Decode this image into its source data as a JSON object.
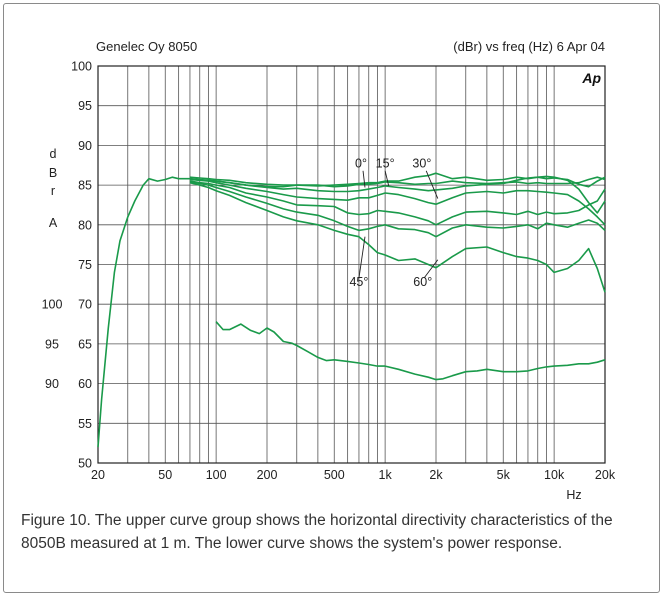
{
  "chart_data": {
    "type": "line",
    "header_left": "Genelec Oy 8050",
    "header_right": "(dBr) vs freq (Hz) 6 Apr 04",
    "logo": "Ap",
    "ylabel_letters": [
      "d",
      "B",
      "r",
      "",
      "A"
    ],
    "xlabel": "Hz",
    "x_scale": "log",
    "xlim": [
      20,
      20000
    ],
    "ylim": [
      50,
      100
    ],
    "x_ticks": [
      20,
      50,
      100,
      200,
      500,
      1000,
      2000,
      5000,
      10000,
      20000
    ],
    "x_tick_labels": [
      "20",
      "50",
      "100",
      "200",
      "500",
      "1k",
      "2k",
      "5k",
      "10k",
      "20k"
    ],
    "y_ticks": [
      50,
      55,
      60,
      65,
      70,
      75,
      80,
      85,
      90,
      95,
      100
    ],
    "y_tick_labels": [
      "50",
      "55",
      "60",
      "65",
      "70",
      "75",
      "80",
      "85",
      "90",
      "95",
      "100"
    ],
    "secondary_y_ticks": [
      {
        "y": 70,
        "label": "100"
      },
      {
        "y": 65,
        "label": "95"
      },
      {
        "y": 60,
        "label": "90"
      }
    ],
    "grid": true,
    "line_color": "#1a9a4a",
    "series": [
      {
        "x": [
          20,
          21,
          23,
          25,
          27,
          30,
          33,
          37,
          40,
          45,
          50,
          55,
          60,
          70,
          80,
          90,
          100,
          120,
          150,
          200,
          250,
          300,
          400,
          500,
          600,
          700,
          800,
          900,
          1000,
          1200,
          1500,
          1800,
          2000,
          2500,
          3000,
          4000,
          5000,
          6000,
          7000,
          8000,
          9000,
          10000,
          12000,
          14000,
          16000,
          18000,
          20000
        ],
        "values": [
          52,
          58,
          67,
          74,
          78,
          81,
          83,
          85,
          85.8,
          85.5,
          85.7,
          86,
          85.8,
          85.8,
          85.6,
          85.6,
          85.5,
          85.3,
          85,
          84.8,
          84.8,
          85,
          85,
          84.8,
          84.9,
          85.1,
          85.1,
          85.2,
          85.4,
          85.3,
          85.1,
          85.2,
          85.2,
          85.5,
          85.3,
          85.2,
          85.3,
          85.4,
          85.2,
          85.3,
          85.2,
          85.2,
          85.2,
          85.3,
          85.7,
          86.0,
          85.7
        ]
      },
      {
        "x": [
          70,
          80,
          90,
          100,
          120,
          150,
          200,
          250,
          300,
          400,
          500,
          600,
          700,
          800,
          900,
          1000,
          1200,
          1500,
          1800,
          2000,
          2500,
          3000,
          4000,
          5000,
          6000,
          7000,
          8000,
          9000,
          10000,
          12000,
          14000,
          16000,
          18000,
          20000
        ],
        "values": [
          86,
          85.9,
          85.8,
          85.7,
          85.6,
          85.3,
          85.1,
          85,
          85,
          84.9,
          85,
          85.1,
          85.2,
          85.3,
          85.3,
          85.5,
          85.5,
          86,
          86.2,
          86.5,
          85.8,
          86,
          85.6,
          85.7,
          86,
          85.8,
          86,
          85.8,
          85.9,
          85.7,
          85.1,
          84.8,
          85.5,
          86.0
        ]
      },
      {
        "x": [
          70,
          80,
          90,
          100,
          120,
          150,
          200,
          250,
          300,
          400,
          500,
          600,
          700,
          800,
          900,
          1000,
          1200,
          1500,
          1800,
          2000,
          2500,
          3000,
          4000,
          5000,
          6000,
          7000,
          8000,
          9000,
          10000,
          12000,
          14000,
          16000,
          18000,
          20000
        ],
        "values": [
          85.8,
          85.7,
          85.6,
          85.5,
          85.3,
          85,
          84.7,
          84.5,
          84.6,
          84.3,
          84.2,
          84.2,
          84.3,
          84.5,
          84.7,
          84.9,
          84.7,
          84.5,
          84.3,
          84.4,
          84.6,
          84.9,
          85.1,
          85.2,
          85.6,
          85.9,
          86,
          86.1,
          86,
          85.6,
          84.5,
          82.8,
          81.5,
          83.0
        ]
      },
      {
        "x": [
          70,
          80,
          90,
          100,
          120,
          150,
          200,
          250,
          300,
          400,
          500,
          600,
          700,
          800,
          900,
          1000,
          1200,
          1500,
          1800,
          2000,
          2500,
          3000,
          4000,
          5000,
          6000,
          7000,
          8000,
          9000,
          10000,
          12000,
          14000,
          16000,
          18000,
          20000
        ],
        "values": [
          85.7,
          85.6,
          85.5,
          85.3,
          85,
          84.6,
          84.2,
          83.8,
          83.5,
          83.3,
          83.2,
          83.1,
          83.4,
          83.4,
          83.7,
          84,
          83.8,
          83.3,
          82.8,
          82.6,
          83.4,
          84,
          84.2,
          84.0,
          84.3,
          84.3,
          84.2,
          84.1,
          84.0,
          83.8,
          83.0,
          82.0,
          81.0,
          80.0
        ]
      },
      {
        "x": [
          70,
          80,
          90,
          100,
          120,
          150,
          200,
          250,
          300,
          400,
          500,
          600,
          700,
          800,
          900,
          1000,
          1200,
          1500,
          1800,
          2000,
          2500,
          3000,
          4000,
          5000,
          6000,
          7000,
          8000,
          9000,
          10000,
          12000,
          14000,
          16000,
          18000,
          20000
        ],
        "values": [
          85.5,
          85.3,
          85.2,
          85,
          84.7,
          84,
          83.5,
          83,
          82.5,
          82.4,
          82.3,
          81.5,
          81.3,
          81.4,
          81.8,
          81.7,
          81.5,
          81,
          80.5,
          80,
          81,
          81.6,
          81.7,
          81.5,
          81.3,
          81.7,
          81.3,
          81.6,
          81.4,
          81.5,
          81.8,
          82.5,
          83.0,
          84.5
        ]
      },
      {
        "x": [
          70,
          80,
          90,
          100,
          120,
          150,
          200,
          250,
          300,
          400,
          500,
          600,
          700,
          800,
          900,
          1000,
          1200,
          1500,
          1800,
          2000,
          2500,
          3000,
          4000,
          5000,
          6000,
          7000,
          8000,
          9000,
          10000,
          12000,
          14000,
          16000,
          18000,
          20000
        ],
        "values": [
          85.4,
          85.2,
          85,
          84.7,
          84.2,
          83.5,
          82.7,
          82,
          81.6,
          81.2,
          80.5,
          79.8,
          79.3,
          79.5,
          79.8,
          80,
          79.5,
          79.4,
          79,
          78.5,
          79.6,
          80.0,
          79.7,
          79.6,
          79.8,
          80.0,
          79.5,
          80.2,
          80.0,
          79.7,
          80.2,
          80.6,
          80.2,
          79.3
        ]
      },
      {
        "x": [
          70,
          80,
          90,
          100,
          120,
          150,
          200,
          250,
          300,
          400,
          500,
          600,
          700,
          800,
          900,
          1000,
          1200,
          1500,
          1800,
          2000,
          2500,
          3000,
          4000,
          5000,
          6000,
          7000,
          8000,
          9000,
          10000,
          12000,
          14000,
          16000,
          18000,
          20000
        ],
        "values": [
          85.3,
          85,
          84.7,
          84.3,
          83.7,
          82.8,
          81.8,
          81,
          80.5,
          80,
          79.3,
          78.8,
          78.5,
          77.5,
          76.5,
          76.2,
          75.5,
          75.7,
          75,
          74.6,
          76,
          77,
          77.2,
          76.5,
          76,
          75.8,
          75.5,
          75,
          74,
          74.5,
          75.5,
          77.0,
          74.5,
          71.5
        ]
      },
      {
        "x": [
          100,
          110,
          120,
          140,
          160,
          180,
          200,
          220,
          250,
          280,
          300,
          350,
          400,
          450,
          500,
          600,
          700,
          800,
          900,
          1000,
          1200,
          1500,
          1800,
          2000,
          2200,
          2500,
          3000,
          3500,
          4000,
          5000,
          6000,
          7000,
          8000,
          9000,
          10000,
          12000,
          14000,
          16000,
          18000,
          20000
        ],
        "values": [
          67.8,
          66.8,
          66.8,
          67.5,
          66.7,
          66.3,
          67,
          66.5,
          65.3,
          65.1,
          64.8,
          64,
          63.3,
          62.9,
          63,
          62.8,
          62.6,
          62.4,
          62.2,
          62.2,
          61.8,
          61.2,
          60.8,
          60.5,
          60.6,
          61,
          61.5,
          61.6,
          61.8,
          61.5,
          61.5,
          61.6,
          61.9,
          62.1,
          62.2,
          62.3,
          62.5,
          62.5,
          62.7,
          63.0
        ]
      }
    ],
    "annotations": [
      {
        "text": "0°",
        "x": 720,
        "y": 87.2
      },
      {
        "text": "15°",
        "x": 1000,
        "y": 87.2
      },
      {
        "text": "30°",
        "x": 1650,
        "y": 87.2
      },
      {
        "text": "45°",
        "x": 700,
        "y": 72.3
      },
      {
        "text": "60°",
        "x": 1670,
        "y": 72.3
      }
    ],
    "caption": "Figure 10. The upper curve group shows the horizontal directivity characteristics of the 8050B measured at 1 m. The lower curve shows the system's power response."
  }
}
